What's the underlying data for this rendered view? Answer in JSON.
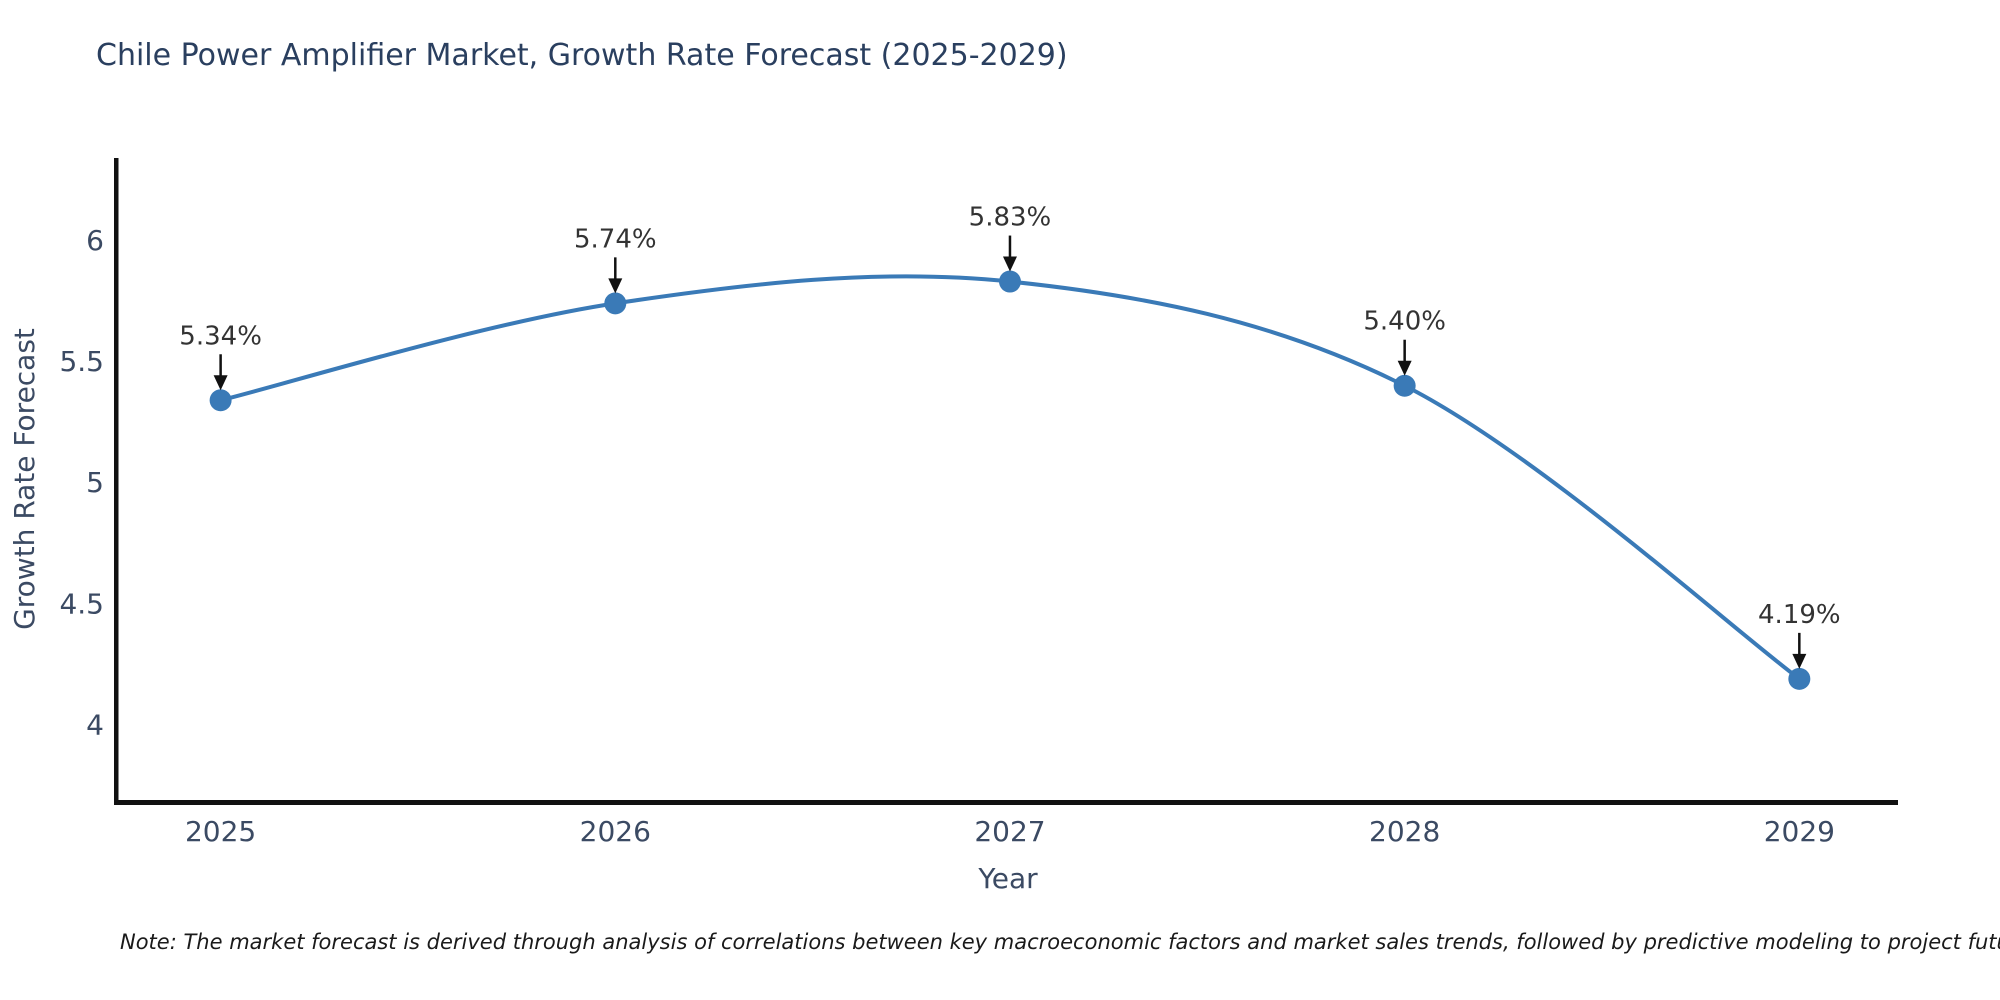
{
  "chart": {
    "title": "Chile Power Amplifier Market, Growth Rate Forecast (2025-2029)",
    "note": "Note: The market forecast is derived through analysis of correlations between key macroeconomic factors and market sales trends, followed by predictive modeling to project future sales",
    "colors": {
      "line": "#3a7ab7",
      "marker": "#3a7ab7",
      "axis": "#111111",
      "arrow": "#111111",
      "title_text": "#2a3f5f",
      "tick_text": "#3b4a63",
      "annotation_text": "#333333"
    }
  },
  "chart_data": {
    "type": "line",
    "line_shape": "spline",
    "title": "Chile Power Amplifier Market, Growth Rate Forecast (2025-2029)",
    "xlabel": "Year",
    "ylabel": "Growth Rate Forecast",
    "x": [
      2025,
      2026,
      2027,
      2028,
      2029
    ],
    "values": [
      5.34,
      5.74,
      5.83,
      5.4,
      4.19
    ],
    "point_labels": [
      "5.34%",
      "5.74%",
      "5.83%",
      "5.40%",
      "4.19%"
    ],
    "xticks": [
      2025,
      2026,
      2027,
      2028,
      2029
    ],
    "yticks": [
      4,
      4.5,
      5,
      5.5,
      6
    ],
    "xlim": [
      2024.74,
      2029.25
    ],
    "ylim": [
      3.69,
      6.34
    ],
    "grid": false,
    "legend": false,
    "annotations": "arrow-labels above each point"
  }
}
